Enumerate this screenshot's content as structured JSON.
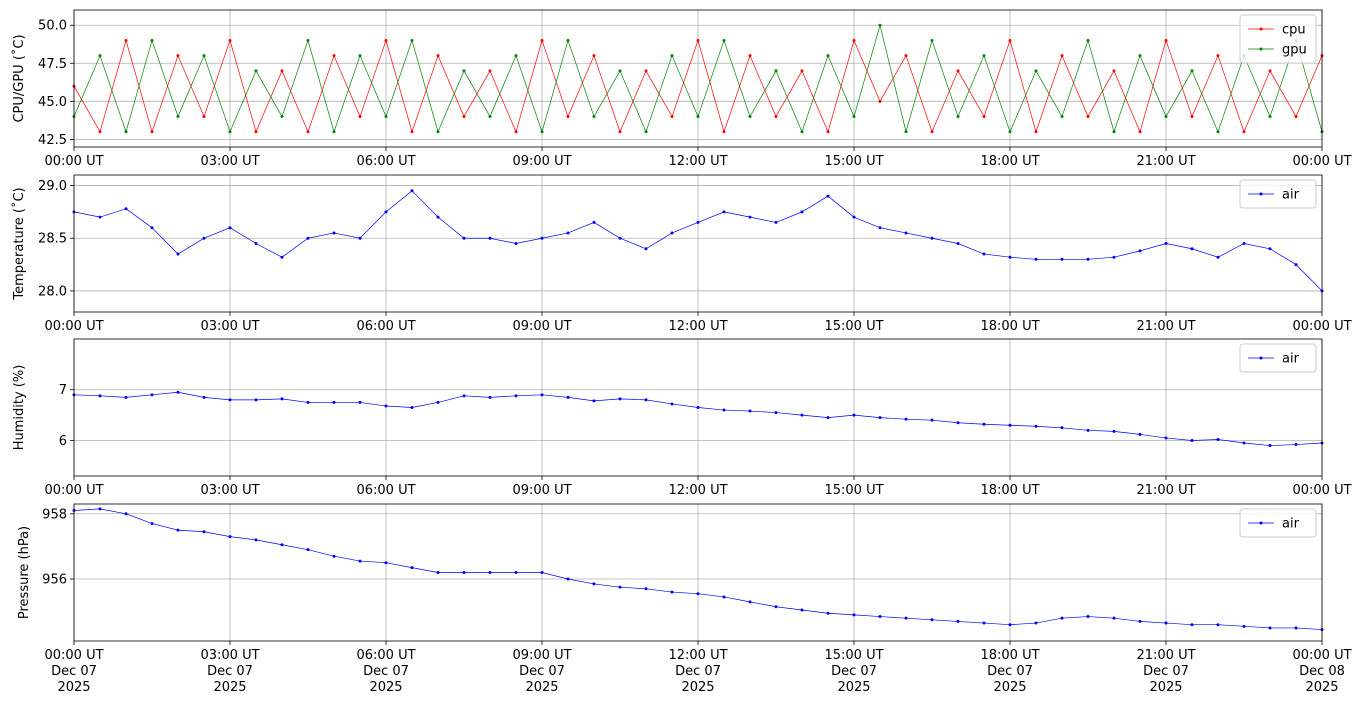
{
  "chart_data": [
    {
      "type": "line",
      "ylabel": "CPU/GPU (˚C)",
      "grid": true,
      "legend": "upper right",
      "x": [
        "2025-12-07T00:00",
        "2025-12-07T00:30",
        "2025-12-07T01:00",
        "2025-12-07T01:30",
        "2025-12-07T02:00",
        "2025-12-07T02:30",
        "2025-12-07T03:00",
        "2025-12-07T03:30",
        "2025-12-07T04:00",
        "2025-12-07T04:30",
        "2025-12-07T05:00",
        "2025-12-07T05:30",
        "2025-12-07T06:00",
        "2025-12-07T06:30",
        "2025-12-07T07:00",
        "2025-12-07T07:30",
        "2025-12-07T08:00",
        "2025-12-07T08:30",
        "2025-12-07T09:00",
        "2025-12-07T09:30",
        "2025-12-07T10:00",
        "2025-12-07T10:30",
        "2025-12-07T11:00",
        "2025-12-07T11:30",
        "2025-12-07T12:00",
        "2025-12-07T12:30",
        "2025-12-07T13:00",
        "2025-12-07T13:30",
        "2025-12-07T14:00",
        "2025-12-07T14:30",
        "2025-12-07T15:00",
        "2025-12-07T15:30",
        "2025-12-07T16:00",
        "2025-12-07T16:30",
        "2025-12-07T17:00",
        "2025-12-07T17:30",
        "2025-12-07T18:00",
        "2025-12-07T18:30",
        "2025-12-07T19:00",
        "2025-12-07T19:30",
        "2025-12-07T20:00",
        "2025-12-07T20:30",
        "2025-12-07T21:00",
        "2025-12-07T21:30",
        "2025-12-07T22:00",
        "2025-12-07T22:30",
        "2025-12-07T23:00",
        "2025-12-07T23:30",
        "2025-12-08T00:00"
      ],
      "series": [
        {
          "name": "cpu",
          "color": "red",
          "values": [
            46,
            43,
            49,
            43,
            48,
            44,
            49,
            43,
            47,
            43,
            48,
            44,
            49,
            43,
            48,
            44,
            47,
            43,
            49,
            44,
            48,
            43,
            47,
            44,
            49,
            43,
            48,
            44,
            47,
            43,
            49,
            45,
            48,
            43,
            47,
            44,
            49,
            43,
            48,
            44,
            47,
            43,
            49,
            44,
            48,
            43,
            47,
            44,
            48
          ]
        },
        {
          "name": "gpu",
          "color": "green",
          "values": [
            44,
            48,
            43,
            49,
            44,
            48,
            43,
            47,
            44,
            49,
            43,
            48,
            44,
            49,
            43,
            47,
            44,
            48,
            43,
            49,
            44,
            47,
            43,
            48,
            44,
            49,
            44,
            47,
            43,
            48,
            44,
            50,
            43,
            49,
            44,
            48,
            43,
            47,
            44,
            49,
            43,
            48,
            44,
            47,
            43,
            48,
            44,
            49,
            43
          ]
        }
      ],
      "xlim": [
        "2025-12-07T00:00",
        "2025-12-08T00:00"
      ],
      "xticks": [
        {
          "value": "2025-12-07T00:00",
          "label": "00:00 UT"
        },
        {
          "value": "2025-12-07T03:00",
          "label": "03:00 UT"
        },
        {
          "value": "2025-12-07T06:00",
          "label": "06:00 UT"
        },
        {
          "value": "2025-12-07T09:00",
          "label": "09:00 UT"
        },
        {
          "value": "2025-12-07T12:00",
          "label": "12:00 UT"
        },
        {
          "value": "2025-12-07T15:00",
          "label": "15:00 UT"
        },
        {
          "value": "2025-12-07T18:00",
          "label": "18:00 UT"
        },
        {
          "value": "2025-12-07T21:00",
          "label": "21:00 UT"
        },
        {
          "value": "2025-12-08T00:00",
          "label": "00:00 UT"
        }
      ],
      "ylim": [
        42,
        51
      ],
      "yticks": [
        42.5,
        {
          "value": 45,
          "label": "45.0"
        },
        47.5,
        {
          "value": 50,
          "label": "50.0"
        }
      ]
    },
    {
      "type": "line",
      "ylabel": "Temperature (˚C)",
      "grid": true,
      "legend": "upper right",
      "x": [
        "2025-12-07T00:00",
        "2025-12-07T00:30",
        "2025-12-07T01:00",
        "2025-12-07T01:30",
        "2025-12-07T02:00",
        "2025-12-07T02:30",
        "2025-12-07T03:00",
        "2025-12-07T03:30",
        "2025-12-07T04:00",
        "2025-12-07T04:30",
        "2025-12-07T05:00",
        "2025-12-07T05:30",
        "2025-12-07T06:00",
        "2025-12-07T06:30",
        "2025-12-07T07:00",
        "2025-12-07T07:30",
        "2025-12-07T08:00",
        "2025-12-07T08:30",
        "2025-12-07T09:00",
        "2025-12-07T09:30",
        "2025-12-07T10:00",
        "2025-12-07T10:30",
        "2025-12-07T11:00",
        "2025-12-07T11:30",
        "2025-12-07T12:00",
        "2025-12-07T12:30",
        "2025-12-07T13:00",
        "2025-12-07T13:30",
        "2025-12-07T14:00",
        "2025-12-07T14:30",
        "2025-12-07T15:00",
        "2025-12-07T15:30",
        "2025-12-07T16:00",
        "2025-12-07T16:30",
        "2025-12-07T17:00",
        "2025-12-07T17:30",
        "2025-12-07T18:00",
        "2025-12-07T18:30",
        "2025-12-07T19:00",
        "2025-12-07T19:30",
        "2025-12-07T20:00",
        "2025-12-07T20:30",
        "2025-12-07T21:00",
        "2025-12-07T21:30",
        "2025-12-07T22:00",
        "2025-12-07T22:30",
        "2025-12-07T23:00",
        "2025-12-07T23:30",
        "2025-12-08T00:00"
      ],
      "series": [
        {
          "name": "air",
          "color": "blue",
          "values": [
            28.75,
            28.7,
            28.78,
            28.6,
            28.35,
            28.5,
            28.6,
            28.45,
            28.32,
            28.5,
            28.55,
            28.5,
            28.75,
            28.95,
            28.7,
            28.5,
            28.5,
            28.45,
            28.5,
            28.55,
            28.65,
            28.5,
            28.4,
            28.55,
            28.65,
            28.75,
            28.7,
            28.65,
            28.75,
            28.9,
            28.7,
            28.6,
            28.55,
            28.5,
            28.45,
            28.35,
            28.32,
            28.3,
            28.3,
            28.3,
            28.32,
            28.38,
            28.45,
            28.4,
            28.32,
            28.45,
            28.4,
            28.25,
            28.0
          ]
        }
      ],
      "xlim": [
        "2025-12-07T00:00",
        "2025-12-08T00:00"
      ],
      "xticks": [
        {
          "value": "2025-12-07T00:00",
          "label": "00:00 UT"
        },
        {
          "value": "2025-12-07T03:00",
          "label": "03:00 UT"
        },
        {
          "value": "2025-12-07T06:00",
          "label": "06:00 UT"
        },
        {
          "value": "2025-12-07T09:00",
          "label": "09:00 UT"
        },
        {
          "value": "2025-12-07T12:00",
          "label": "12:00 UT"
        },
        {
          "value": "2025-12-07T15:00",
          "label": "15:00 UT"
        },
        {
          "value": "2025-12-07T18:00",
          "label": "18:00 UT"
        },
        {
          "value": "2025-12-07T21:00",
          "label": "21:00 UT"
        },
        {
          "value": "2025-12-08T00:00",
          "label": "00:00 UT"
        }
      ],
      "ylim": [
        27.8,
        29.1
      ],
      "yticks": [
        {
          "value": 28,
          "label": "28.0"
        },
        28.5,
        {
          "value": 29,
          "label": "29.0"
        }
      ]
    },
    {
      "type": "line",
      "ylabel": "Humidity (%)",
      "grid": true,
      "legend": "upper right",
      "x": [
        "2025-12-07T00:00",
        "2025-12-07T00:30",
        "2025-12-07T01:00",
        "2025-12-07T01:30",
        "2025-12-07T02:00",
        "2025-12-07T02:30",
        "2025-12-07T03:00",
        "2025-12-07T03:30",
        "2025-12-07T04:00",
        "2025-12-07T04:30",
        "2025-12-07T05:00",
        "2025-12-07T05:30",
        "2025-12-07T06:00",
        "2025-12-07T06:30",
        "2025-12-07T07:00",
        "2025-12-07T07:30",
        "2025-12-07T08:00",
        "2025-12-07T08:30",
        "2025-12-07T09:00",
        "2025-12-07T09:30",
        "2025-12-07T10:00",
        "2025-12-07T10:30",
        "2025-12-07T11:00",
        "2025-12-07T11:30",
        "2025-12-07T12:00",
        "2025-12-07T12:30",
        "2025-12-07T13:00",
        "2025-12-07T13:30",
        "2025-12-07T14:00",
        "2025-12-07T14:30",
        "2025-12-07T15:00",
        "2025-12-07T15:30",
        "2025-12-07T16:00",
        "2025-12-07T16:30",
        "2025-12-07T17:00",
        "2025-12-07T17:30",
        "2025-12-07T18:00",
        "2025-12-07T18:30",
        "2025-12-07T19:00",
        "2025-12-07T19:30",
        "2025-12-07T20:00",
        "2025-12-07T20:30",
        "2025-12-07T21:00",
        "2025-12-07T21:30",
        "2025-12-07T22:00",
        "2025-12-07T22:30",
        "2025-12-07T23:00",
        "2025-12-07T23:30",
        "2025-12-08T00:00"
      ],
      "series": [
        {
          "name": "air",
          "color": "blue",
          "values": [
            6.9,
            6.88,
            6.85,
            6.9,
            6.95,
            6.85,
            6.8,
            6.8,
            6.82,
            6.75,
            6.75,
            6.75,
            6.68,
            6.65,
            6.75,
            6.88,
            6.85,
            6.88,
            6.9,
            6.85,
            6.78,
            6.82,
            6.8,
            6.72,
            6.65,
            6.6,
            6.58,
            6.55,
            6.5,
            6.45,
            6.5,
            6.45,
            6.42,
            6.4,
            6.35,
            6.32,
            6.3,
            6.28,
            6.25,
            6.2,
            6.18,
            6.12,
            6.05,
            6.0,
            6.02,
            5.95,
            5.9,
            5.92,
            5.95
          ]
        }
      ],
      "xlim": [
        "2025-12-07T00:00",
        "2025-12-08T00:00"
      ],
      "xticks": [
        {
          "value": "2025-12-07T00:00",
          "label": "00:00 UT"
        },
        {
          "value": "2025-12-07T03:00",
          "label": "03:00 UT"
        },
        {
          "value": "2025-12-07T06:00",
          "label": "06:00 UT"
        },
        {
          "value": "2025-12-07T09:00",
          "label": "09:00 UT"
        },
        {
          "value": "2025-12-07T12:00",
          "label": "12:00 UT"
        },
        {
          "value": "2025-12-07T15:00",
          "label": "15:00 UT"
        },
        {
          "value": "2025-12-07T18:00",
          "label": "18:00 UT"
        },
        {
          "value": "2025-12-07T21:00",
          "label": "21:00 UT"
        },
        {
          "value": "2025-12-08T00:00",
          "label": "00:00 UT"
        }
      ],
      "ylim": [
        5.3,
        8.0
      ],
      "yticks": [
        6,
        7
      ]
    },
    {
      "type": "line",
      "ylabel": "Pressure (hPa)",
      "grid": true,
      "legend": "upper right",
      "x": [
        "2025-12-07T00:00",
        "2025-12-07T00:30",
        "2025-12-07T01:00",
        "2025-12-07T01:30",
        "2025-12-07T02:00",
        "2025-12-07T02:30",
        "2025-12-07T03:00",
        "2025-12-07T03:30",
        "2025-12-07T04:00",
        "2025-12-07T04:30",
        "2025-12-07T05:00",
        "2025-12-07T05:30",
        "2025-12-07T06:00",
        "2025-12-07T06:30",
        "2025-12-07T07:00",
        "2025-12-07T07:30",
        "2025-12-07T08:00",
        "2025-12-07T08:30",
        "2025-12-07T09:00",
        "2025-12-07T09:30",
        "2025-12-07T10:00",
        "2025-12-07T10:30",
        "2025-12-07T11:00",
        "2025-12-07T11:30",
        "2025-12-07T12:00",
        "2025-12-07T12:30",
        "2025-12-07T13:00",
        "2025-12-07T13:30",
        "2025-12-07T14:00",
        "2025-12-07T14:30",
        "2025-12-07T15:00",
        "2025-12-07T15:30",
        "2025-12-07T16:00",
        "2025-12-07T16:30",
        "2025-12-07T17:00",
        "2025-12-07T17:30",
        "2025-12-07T18:00",
        "2025-12-07T18:30",
        "2025-12-07T19:00",
        "2025-12-07T19:30",
        "2025-12-07T20:00",
        "2025-12-07T20:30",
        "2025-12-07T21:00",
        "2025-12-07T21:30",
        "2025-12-07T22:00",
        "2025-12-07T22:30",
        "2025-12-07T23:00",
        "2025-12-07T23:30",
        "2025-12-08T00:00"
      ],
      "series": [
        {
          "name": "air",
          "color": "blue",
          "values": [
            958.1,
            958.15,
            958.0,
            957.7,
            957.5,
            957.45,
            957.3,
            957.2,
            957.05,
            956.9,
            956.7,
            956.55,
            956.5,
            956.35,
            956.2,
            956.2,
            956.2,
            956.2,
            956.2,
            956.0,
            955.85,
            955.75,
            955.7,
            955.6,
            955.55,
            955.45,
            955.3,
            955.15,
            955.05,
            954.95,
            954.9,
            954.85,
            954.8,
            954.75,
            954.7,
            954.65,
            954.6,
            954.65,
            954.8,
            954.85,
            954.8,
            954.7,
            954.65,
            954.6,
            954.6,
            954.55,
            954.5,
            954.5,
            954.45
          ]
        }
      ],
      "xlim": [
        "2025-12-07T00:00",
        "2025-12-08T00:00"
      ],
      "xticks": [
        {
          "value": "2025-12-07T00:00",
          "label": [
            "00:00 UT",
            "Dec 07",
            "2025"
          ]
        },
        {
          "value": "2025-12-07T03:00",
          "label": [
            "03:00 UT",
            "Dec 07",
            "2025"
          ]
        },
        {
          "value": "2025-12-07T06:00",
          "label": [
            "06:00 UT",
            "Dec 07",
            "2025"
          ]
        },
        {
          "value": "2025-12-07T09:00",
          "label": [
            "09:00 UT",
            "Dec 07",
            "2025"
          ]
        },
        {
          "value": "2025-12-07T12:00",
          "label": [
            "12:00 UT",
            "Dec 07",
            "2025"
          ]
        },
        {
          "value": "2025-12-07T15:00",
          "label": [
            "15:00 UT",
            "Dec 07",
            "2025"
          ]
        },
        {
          "value": "2025-12-07T18:00",
          "label": [
            "18:00 UT",
            "Dec 07",
            "2025"
          ]
        },
        {
          "value": "2025-12-07T21:00",
          "label": [
            "21:00 UT",
            "Dec 07",
            "2025"
          ]
        },
        {
          "value": "2025-12-08T00:00",
          "label": [
            "00:00 UT",
            "Dec 08",
            "2025"
          ]
        }
      ],
      "ylim": [
        954.1,
        958.3
      ],
      "yticks": [
        956,
        958
      ]
    }
  ]
}
